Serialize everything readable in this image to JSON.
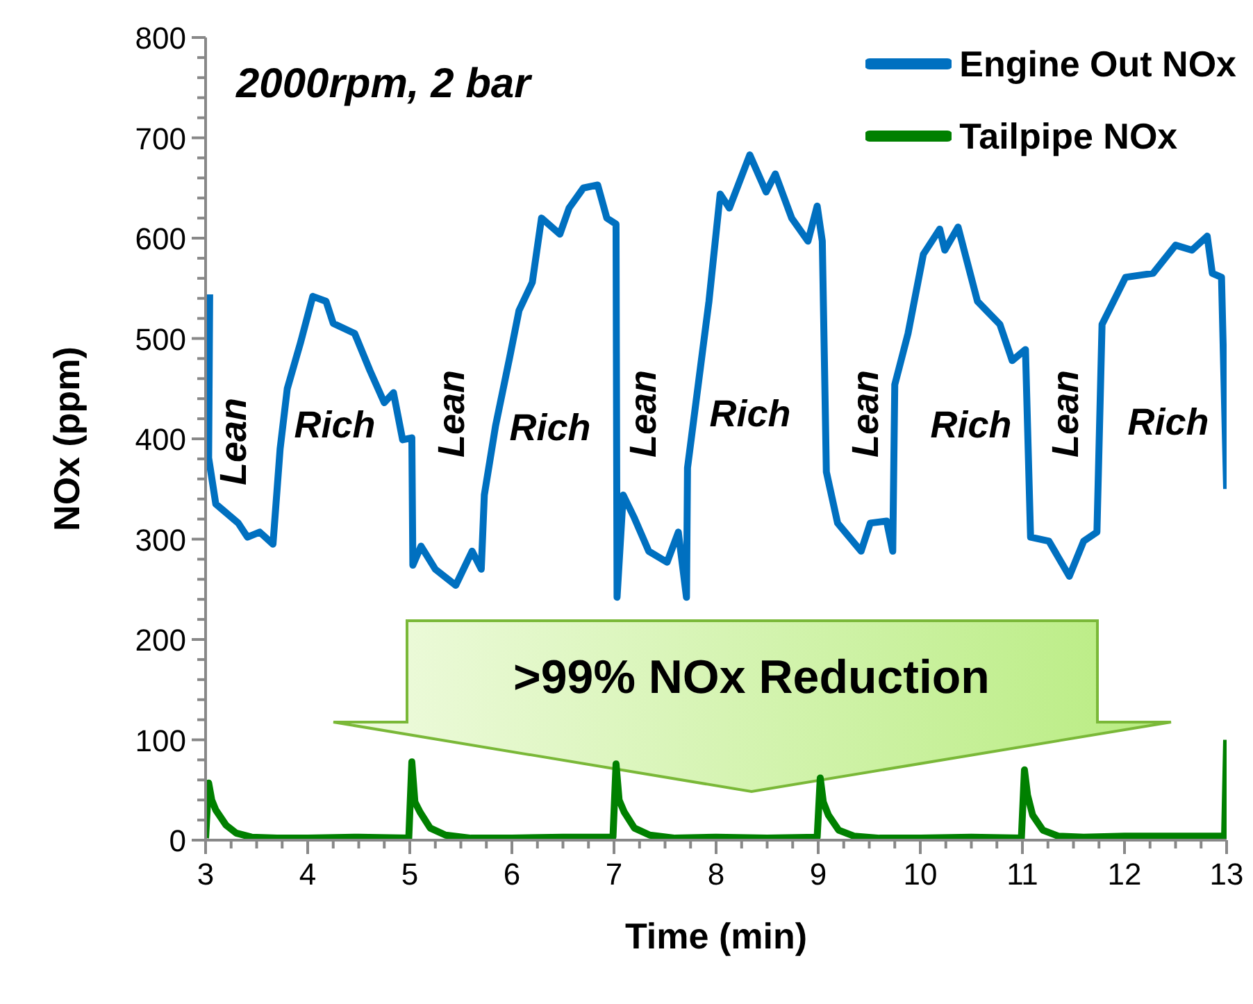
{
  "chart_data": {
    "type": "line",
    "title": "2000rpm, 2 bar",
    "xlabel": "Time (min)",
    "ylabel": "NOx (ppm)",
    "xlim": [
      3,
      13
    ],
    "ylim": [
      0,
      800
    ],
    "xticks": [
      3,
      {
        "value": 3.25,
        "label": null
      },
      {
        "value": 3.5,
        "label": null
      },
      {
        "value": 3.75,
        "label": null
      },
      4,
      {
        "value": 4.25,
        "label": null
      },
      {
        "value": 4.5,
        "label": null
      },
      {
        "value": 4.75,
        "label": null
      },
      5,
      {
        "value": 5.25,
        "label": null
      },
      {
        "value": 5.5,
        "label": null
      },
      {
        "value": 5.75,
        "label": null
      },
      6,
      {
        "value": 6.25,
        "label": null
      },
      {
        "value": 6.5,
        "label": null
      },
      {
        "value": 6.75,
        "label": null
      },
      7,
      {
        "value": 7.25,
        "label": null
      },
      {
        "value": 7.5,
        "label": null
      },
      {
        "value": 7.75,
        "label": null
      },
      8,
      {
        "value": 8.25,
        "label": null
      },
      {
        "value": 8.5,
        "label": null
      },
      {
        "value": 8.75,
        "label": null
      },
      9,
      {
        "value": 9.25,
        "label": null
      },
      {
        "value": 9.5,
        "label": null
      },
      {
        "value": 9.75,
        "label": null
      },
      10,
      {
        "value": 10.25,
        "label": null
      },
      {
        "value": 10.5,
        "label": null
      },
      {
        "value": 10.75,
        "label": null
      },
      11,
      {
        "value": 11.25,
        "label": null
      },
      {
        "value": 11.5,
        "label": null
      },
      {
        "value": 11.75,
        "label": null
      },
      12,
      {
        "value": 12.25,
        "label": null
      },
      {
        "value": 12.5,
        "label": null
      },
      {
        "value": 12.75,
        "label": null
      },
      13
    ],
    "yticks": [
      0,
      {
        "value": 20,
        "label": null
      },
      {
        "value": 40,
        "label": null
      },
      {
        "value": 60,
        "label": null
      },
      {
        "value": 80,
        "label": null
      },
      100,
      {
        "value": 120,
        "label": null
      },
      {
        "value": 140,
        "label": null
      },
      {
        "value": 160,
        "label": null
      },
      {
        "value": 180,
        "label": null
      },
      200,
      {
        "value": 220,
        "label": null
      },
      {
        "value": 240,
        "label": null
      },
      {
        "value": 260,
        "label": null
      },
      {
        "value": 280,
        "label": null
      },
      300,
      {
        "value": 320,
        "label": null
      },
      {
        "value": 340,
        "label": null
      },
      {
        "value": 360,
        "label": null
      },
      {
        "value": 380,
        "label": null
      },
      400,
      {
        "value": 420,
        "label": null
      },
      {
        "value": 440,
        "label": null
      },
      {
        "value": 460,
        "label": null
      },
      {
        "value": 480,
        "label": null
      },
      500,
      {
        "value": 520,
        "label": null
      },
      {
        "value": 540,
        "label": null
      },
      {
        "value": 560,
        "label": null
      },
      {
        "value": 580,
        "label": null
      },
      600,
      {
        "value": 620,
        "label": null
      },
      {
        "value": 640,
        "label": null
      },
      {
        "value": 660,
        "label": null
      },
      {
        "value": 680,
        "label": null
      },
      700,
      {
        "value": 720,
        "label": null
      },
      {
        "value": 740,
        "label": null
      },
      {
        "value": 760,
        "label": null
      },
      {
        "value": 780,
        "label": null
      },
      800
    ],
    "grid": false,
    "legend": "top right",
    "marker": "none",
    "line_style": "solid",
    "series": [
      {
        "name": "Engine Out NOx",
        "color": "#0070c0",
        "x": [
          3.04,
          3.03,
          3.1,
          3.32,
          3.41,
          3.53,
          3.66,
          3.73,
          3.8,
          3.93,
          4.05,
          4.18,
          4.25,
          4.46,
          4.61,
          4.75,
          4.84,
          4.93,
          5.02,
          5.03,
          5.11,
          5.25,
          5.45,
          5.61,
          5.7,
          5.73,
          5.84,
          5.98,
          6.07,
          6.2,
          6.29,
          6.47,
          6.56,
          6.7,
          6.84,
          6.93,
          7.02,
          7.03,
          7.09,
          7.2,
          7.34,
          7.52,
          7.63,
          7.71,
          7.72,
          7.93,
          8.04,
          8.13,
          8.33,
          8.49,
          8.58,
          8.74,
          8.9,
          8.99,
          9.04,
          9.08,
          9.19,
          9.42,
          9.51,
          9.67,
          9.73,
          9.75,
          9.88,
          10.03,
          10.19,
          10.24,
          10.37,
          10.56,
          10.78,
          10.9,
          11.03,
          11.08,
          11.26,
          11.46,
          11.6,
          11.73,
          11.78,
          12.01,
          12.28,
          12.5,
          12.66,
          12.81,
          12.86,
          12.95,
          13
        ],
        "values": [
          544,
          381,
          335,
          316,
          302,
          307,
          295,
          390,
          450,
          496,
          542,
          537,
          515,
          505,
          468,
          436,
          446,
          399,
          401,
          274,
          293,
          270,
          254,
          288,
          270,
          344,
          413,
          482,
          528,
          556,
          620,
          604,
          630,
          650,
          653,
          620,
          614,
          242,
          344,
          321,
          288,
          277,
          307,
          242,
          371,
          537,
          644,
          630,
          683,
          646,
          664,
          620,
          597,
          632,
          597,
          367,
          316,
          288,
          316,
          318,
          288,
          454,
          505,
          584,
          609,
          588,
          611,
          537,
          514,
          478,
          489,
          302,
          298,
          263,
          298,
          307,
          514,
          561,
          565,
          593,
          588,
          602,
          565,
          561,
          350
        ]
      },
      {
        "name": "Tailpipe NOx",
        "color": "#008000",
        "x": [
          3.0,
          3.03,
          3.06,
          3.1,
          3.2,
          3.3,
          3.45,
          3.7,
          4.0,
          4.5,
          4.99,
          5.02,
          5.05,
          5.1,
          5.2,
          5.35,
          5.6,
          6.0,
          6.5,
          6.99,
          7.02,
          7.05,
          7.1,
          7.2,
          7.35,
          7.6,
          8.0,
          8.5,
          8.99,
          9.02,
          9.05,
          9.1,
          9.2,
          9.35,
          9.6,
          10.0,
          10.5,
          10.99,
          11.02,
          11.05,
          11.1,
          11.2,
          11.35,
          11.6,
          12.0,
          12.5,
          12.98,
          13
        ],
        "values": [
          2,
          57,
          40,
          30,
          15,
          7,
          3,
          2,
          2,
          3,
          2,
          78,
          38,
          28,
          12,
          5,
          2,
          2,
          3,
          3,
          76,
          40,
          28,
          12,
          5,
          2,
          3,
          2,
          3,
          62,
          38,
          25,
          10,
          4,
          2,
          2,
          3,
          2,
          70,
          45,
          25,
          10,
          4,
          3,
          4,
          4,
          4,
          100
        ]
      }
    ],
    "annotations": [
      "Lean",
      "Rich",
      "Lean",
      "Rich",
      "Lean",
      "Rich",
      "Lean",
      "Rich",
      "Lean",
      "Rich",
      ">99% NOx Reduction"
    ]
  }
}
